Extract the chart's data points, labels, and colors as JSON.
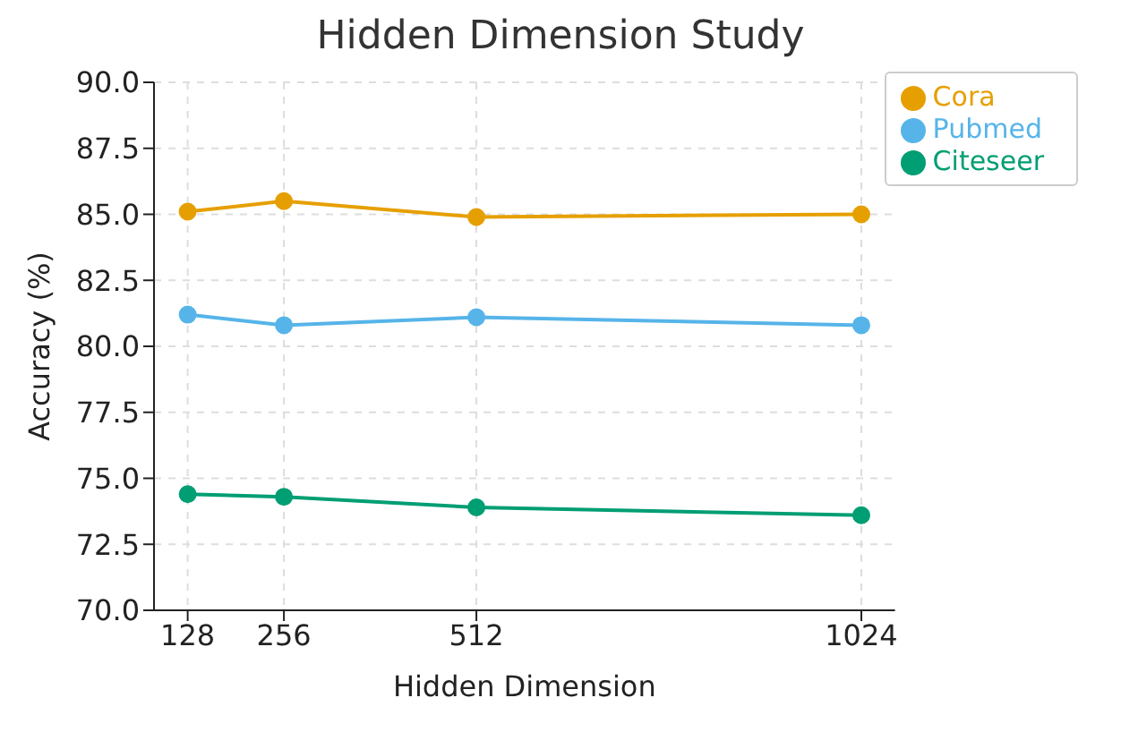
{
  "chart_data": {
    "type": "line",
    "title": "Hidden Dimension Study",
    "xlabel": "Hidden Dimension",
    "ylabel": "Accuracy (%)",
    "x": [
      128,
      256,
      512,
      1024
    ],
    "series": [
      {
        "name": "Cora",
        "color": "#e69f00",
        "values": [
          85.1,
          85.5,
          84.9,
          85.0
        ]
      },
      {
        "name": "Pubmed",
        "color": "#56b4e9",
        "values": [
          81.2,
          80.8,
          81.1,
          80.8
        ]
      },
      {
        "name": "Citeseer",
        "color": "#009e73",
        "values": [
          74.4,
          74.3,
          73.9,
          73.6
        ]
      }
    ],
    "xlim": [
      83.2,
      1068.8
    ],
    "xticks": [
      128,
      256,
      512,
      1024
    ],
    "ylim": [
      70,
      90
    ],
    "yticks": [
      {
        "value": 70,
        "label": "70.0"
      },
      {
        "value": 72.5,
        "label": "72.5"
      },
      {
        "value": 75,
        "label": "75.0"
      },
      {
        "value": 77.5,
        "label": "77.5"
      },
      {
        "value": 80,
        "label": "80.0"
      },
      {
        "value": 82.5,
        "label": "82.5"
      },
      {
        "value": 85,
        "label": "85.0"
      },
      {
        "value": 87.5,
        "label": "87.5"
      },
      {
        "value": 90,
        "label": "90.0"
      }
    ],
    "grid": true,
    "legend": "top right",
    "marker": "circle",
    "line_style": "solid"
  }
}
